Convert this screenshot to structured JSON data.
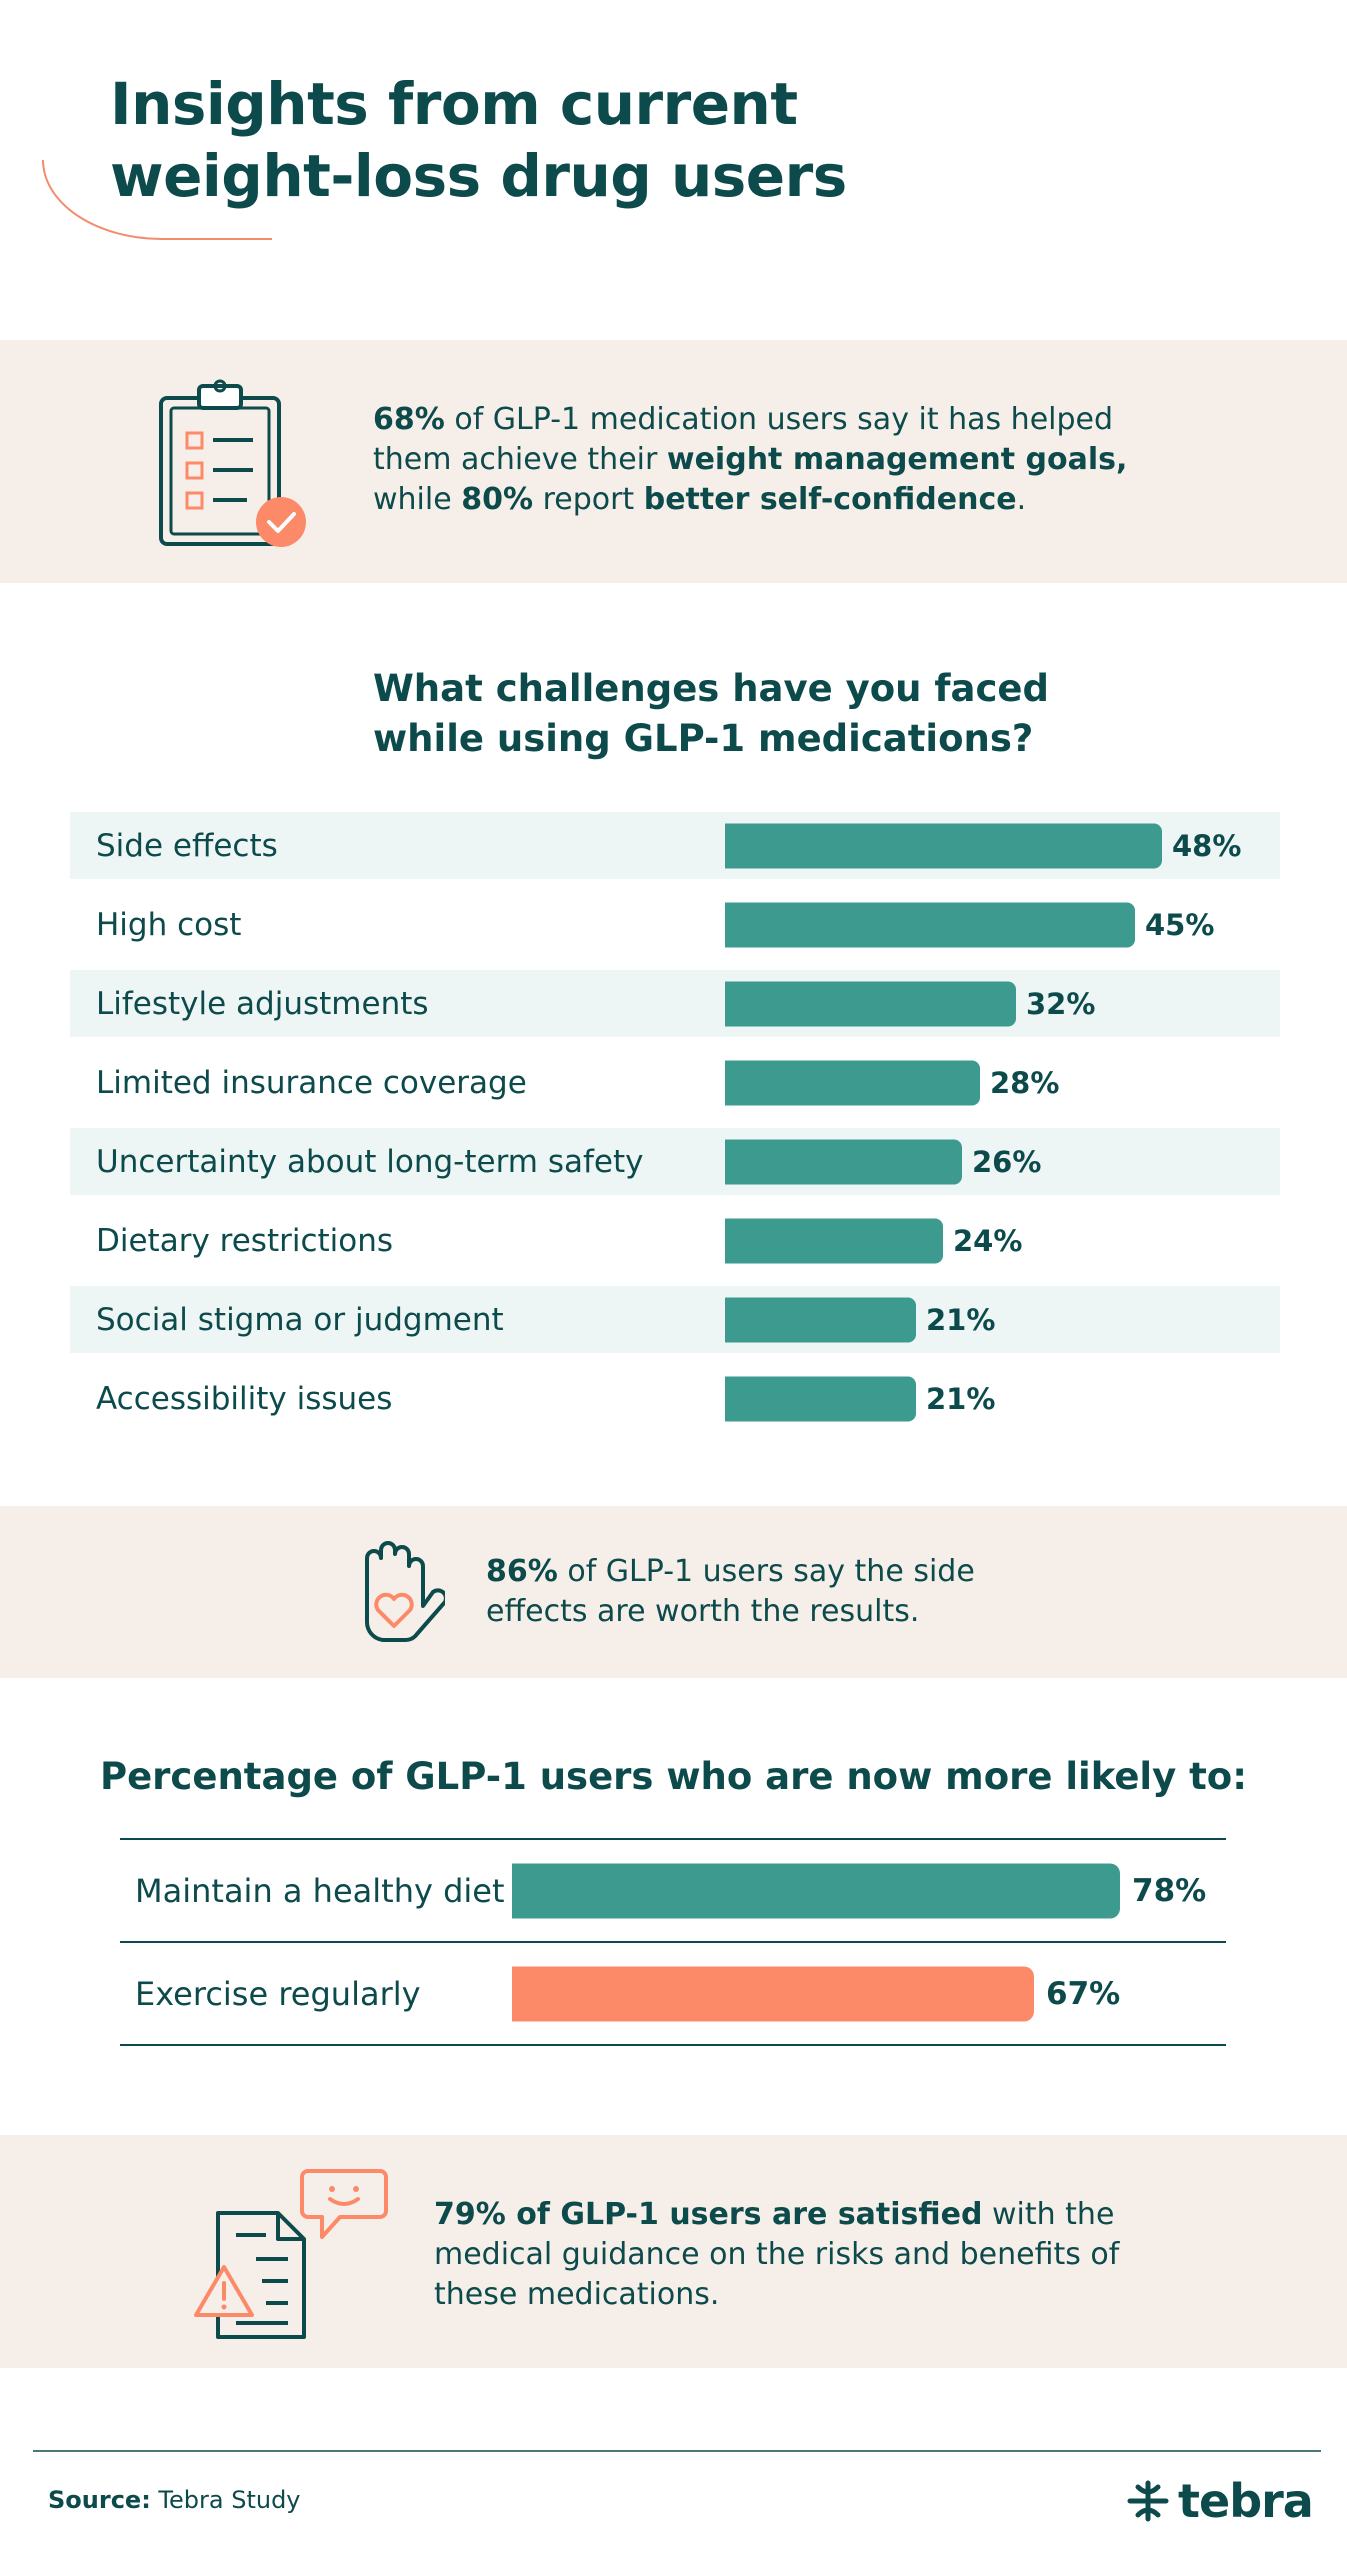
{
  "title": "Insights from current weight-loss drug users",
  "stat1": {
    "pct1": "68%",
    "t1": " of GLP-1 medication users say it has helped them achieve their ",
    "b1": "weight management goals,",
    "t2": " while ",
    "pct2": "80%",
    "t3": " report ",
    "b2": "better self-confidence",
    "t4": "."
  },
  "stat2": {
    "pct": "86%",
    "text": " of GLP-1 users say the side effects are worth the results."
  },
  "stat3": {
    "bold": "79% of GLP-1 users are satisfied",
    "text": " with the medical guidance on the risks and benefits of these medications."
  },
  "chart_data": [
    {
      "type": "bar",
      "orientation": "horizontal",
      "title": "What challenges have you faced while using GLP-1 medications?",
      "categories": [
        "Side effects",
        "High cost",
        "Lifestyle adjustments",
        "Limited insurance coverage",
        "Uncertainty about long-term safety",
        "Dietary restrictions",
        "Social stigma or judgment",
        "Accessibility issues"
      ],
      "values": [
        48,
        45,
        32,
        28,
        26,
        24,
        21,
        21
      ],
      "value_labels": [
        "48%",
        "45%",
        "32%",
        "28%",
        "26%",
        "24%",
        "21%",
        "21%"
      ],
      "unit": "%",
      "xlim": [
        0,
        50
      ],
      "color": "#3d9a8e",
      "row_shading": "alternating"
    },
    {
      "type": "bar",
      "orientation": "horizontal",
      "title": "Percentage of GLP-1 users who are now more likely to:",
      "categories": [
        "Maintain a healthy diet",
        "Exercise regularly"
      ],
      "values": [
        78,
        67
      ],
      "value_labels": [
        "78%",
        "67%"
      ],
      "unit": "%",
      "xlim": [
        0,
        78
      ],
      "colors": [
        "#3d9a8e",
        "#fc8a68"
      ]
    }
  ],
  "footer": {
    "source_label": "Source:",
    "source_text": " Tebra Study",
    "brand": "tebra"
  },
  "colors": {
    "teal_dark": "#0d4a4b",
    "teal_bar": "#3d9a8e",
    "coral": "#fc8a68",
    "band": "#f6efe9",
    "row_shade": "#eef6f5"
  },
  "icons": [
    "clipboard-checklist-icon",
    "hand-heart-icon",
    "document-warning-icon",
    "chat-smile-icon",
    "tebra-logo-icon"
  ]
}
